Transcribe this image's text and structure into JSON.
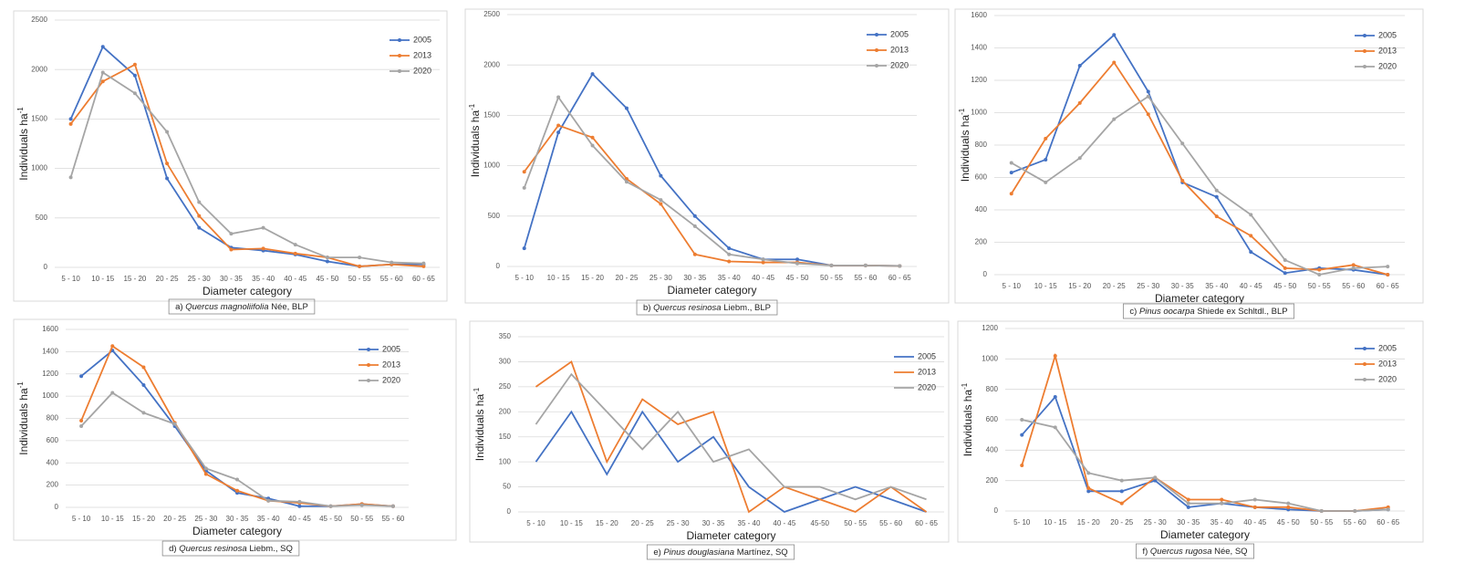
{
  "chart_data": [
    {
      "type": "line",
      "caption": {
        "label": "a)",
        "species": "Quercus magnoliifolia",
        "suffix": "Née, BLP"
      },
      "x_label": "Diameter category",
      "y_label": "Individuals ha",
      "y_label_exponent": "-1",
      "grid": true,
      "markers": true,
      "legend": "top-right",
      "categories": [
        "5 - 10",
        "10 - 15",
        "15 - 20",
        "20 - 25",
        "25 - 30",
        "30 - 35",
        "35 - 40",
        "40 - 45",
        "45 - 50",
        "50 - 55",
        "55 - 60",
        "60 - 65"
      ],
      "ylim": [
        0,
        2500
      ],
      "yticks": [
        0,
        500,
        1000,
        1500,
        2000,
        2500
      ],
      "series": [
        {
          "name": "2005",
          "color": "#4472c4",
          "values": [
            1500,
            2230,
            1940,
            900,
            400,
            200,
            170,
            130,
            60,
            10,
            30,
            30
          ]
        },
        {
          "name": "2013",
          "color": "#ed7d31",
          "values": [
            1450,
            1880,
            2050,
            1050,
            520,
            180,
            190,
            140,
            100,
            10,
            30,
            10
          ]
        },
        {
          "name": "2020",
          "color": "#a5a5a5",
          "values": [
            910,
            1970,
            1760,
            1370,
            660,
            340,
            400,
            230,
            100,
            100,
            50,
            40
          ]
        }
      ]
    },
    {
      "type": "line",
      "caption": {
        "label": "b)",
        "species": "Quercus resinosa",
        "suffix": "Liebm., BLP"
      },
      "x_label": "Diameter category",
      "y_label": "Individuals ha",
      "y_label_exponent": "-1",
      "grid": true,
      "markers": true,
      "legend": "top-right",
      "categories": [
        "5 - 10",
        "10 - 15",
        "15 - 20",
        "20 - 25",
        "25 - 30",
        "30 - 35",
        "35 - 40",
        "40 - 45",
        "45 - 50",
        "50 - 55",
        "55 - 60",
        "60 - 65"
      ],
      "ylim": [
        0,
        2500
      ],
      "yticks": [
        0,
        500,
        1000,
        1500,
        2000,
        2500
      ],
      "series": [
        {
          "name": "2005",
          "color": "#4472c4",
          "values": [
            180,
            1330,
            1910,
            1570,
            900,
            500,
            180,
            70,
            70,
            10,
            10,
            5
          ]
        },
        {
          "name": "2013",
          "color": "#ed7d31",
          "values": [
            940,
            1400,
            1280,
            870,
            620,
            120,
            50,
            40,
            40,
            10,
            10,
            5
          ]
        },
        {
          "name": "2020",
          "color": "#a5a5a5",
          "values": [
            780,
            1680,
            1200,
            840,
            660,
            400,
            120,
            70,
            30,
            10,
            10,
            5
          ]
        }
      ]
    },
    {
      "type": "line",
      "caption": {
        "label": "c)",
        "species": "Pinus oocarpa",
        "suffix": "Shiede ex Schltdl., BLP"
      },
      "x_label": "Diameter category",
      "y_label": "Individuals ha",
      "y_label_exponent": "-1",
      "grid": true,
      "markers": true,
      "legend": "top-right",
      "categories": [
        "5 - 10",
        "10 - 15",
        "15 - 20",
        "20 - 25",
        "25 - 30",
        "30 - 35",
        "35 - 40",
        "40 - 45",
        "45 - 50",
        "50 - 55",
        "55 - 60",
        "60 - 65"
      ],
      "ylim": [
        0,
        1600
      ],
      "yticks": [
        0,
        200,
        400,
        600,
        800,
        1000,
        1200,
        1400,
        1600
      ],
      "series": [
        {
          "name": "2005",
          "color": "#4472c4",
          "values": [
            630,
            710,
            1290,
            1480,
            1130,
            570,
            480,
            140,
            10,
            40,
            30,
            0
          ]
        },
        {
          "name": "2013",
          "color": "#ed7d31",
          "values": [
            500,
            840,
            1060,
            1310,
            990,
            580,
            360,
            240,
            40,
            30,
            60,
            0
          ]
        },
        {
          "name": "2020",
          "color": "#a5a5a5",
          "values": [
            690,
            570,
            720,
            960,
            1100,
            810,
            520,
            370,
            90,
            0,
            40,
            50
          ]
        }
      ]
    },
    {
      "type": "line",
      "caption": {
        "label": "d)",
        "species": "Quercus resinosa",
        "suffix": "Liebm., SQ"
      },
      "x_label": "Diameter category",
      "y_label": "Individuals ha",
      "y_label_exponent": "-1",
      "grid": true,
      "markers": true,
      "legend": "top-right",
      "categories": [
        "5 - 10",
        "10 - 15",
        "15 - 20",
        "20 - 25",
        "25 - 30",
        "30 - 35",
        "35 - 40",
        "40 - 45",
        "45 - 50",
        "50 - 55",
        "55 - 60"
      ],
      "ylim": [
        0,
        1600
      ],
      "yticks": [
        0,
        200,
        400,
        600,
        800,
        1000,
        1200,
        1400,
        1600
      ],
      "series": [
        {
          "name": "2005",
          "color": "#4472c4",
          "values": [
            1180,
            1410,
            1100,
            730,
            330,
            130,
            80,
            10,
            10,
            30,
            10
          ]
        },
        {
          "name": "2013",
          "color": "#ed7d31",
          "values": [
            780,
            1450,
            1260,
            760,
            300,
            150,
            60,
            40,
            10,
            30,
            10
          ]
        },
        {
          "name": "2020",
          "color": "#a5a5a5",
          "values": [
            730,
            1030,
            850,
            750,
            350,
            250,
            60,
            50,
            10,
            20,
            10
          ]
        }
      ]
    },
    {
      "type": "line",
      "caption": {
        "label": "e)",
        "species": "Pinus douglasiana",
        "suffix": "Martínez, SQ"
      },
      "x_label": "Diameter category",
      "y_label": "Individuals ha",
      "y_label_exponent": "-1",
      "grid": true,
      "markers": false,
      "legend": "top-right",
      "categories": [
        "5 - 10",
        "10 - 15",
        "15 - 20",
        "20 - 25",
        "25 - 30",
        "30 - 35",
        "35 - 40",
        "40 - 45",
        "45-50",
        "50 - 55",
        "55 - 60",
        "60 - 65"
      ],
      "ylim": [
        0,
        350
      ],
      "yticks": [
        0,
        50,
        100,
        150,
        200,
        250,
        300,
        350
      ],
      "series": [
        {
          "name": "2005",
          "color": "#4472c4",
          "values": [
            100,
            200,
            75,
            200,
            100,
            150,
            50,
            0,
            25,
            50,
            25,
            0
          ]
        },
        {
          "name": "2013",
          "color": "#ed7d31",
          "values": [
            250,
            300,
            100,
            225,
            175,
            200,
            0,
            50,
            25,
            0,
            50,
            0
          ]
        },
        {
          "name": "2020",
          "color": "#a5a5a5",
          "values": [
            175,
            275,
            200,
            125,
            200,
            100,
            125,
            50,
            50,
            25,
            50,
            25
          ]
        }
      ]
    },
    {
      "type": "line",
      "caption": {
        "label": "f)",
        "species": "Quercus rugosa",
        "suffix": "Née, SQ"
      },
      "x_label": "Diameter category",
      "y_label": "Individuals ha",
      "y_label_exponent": "-1",
      "grid": true,
      "markers": true,
      "legend": "top-right",
      "categories": [
        "5- 10",
        "10 - 15",
        "15 - 20",
        "20 - 25",
        "25 - 30",
        "30 - 35",
        "35 - 40",
        "40 - 45",
        "45 - 50",
        "50 - 55",
        "55 - 60",
        "60 - 65"
      ],
      "ylim": [
        0,
        1200
      ],
      "yticks": [
        0,
        200,
        400,
        600,
        800,
        1000,
        1200
      ],
      "series": [
        {
          "name": "2005",
          "color": "#4472c4",
          "values": [
            500,
            750,
            130,
            130,
            200,
            25,
            50,
            25,
            10,
            0,
            0,
            10
          ]
        },
        {
          "name": "2013",
          "color": "#ed7d31",
          "values": [
            300,
            1020,
            150,
            50,
            220,
            75,
            75,
            25,
            25,
            0,
            0,
            25
          ]
        },
        {
          "name": "2020",
          "color": "#a5a5a5",
          "values": [
            600,
            550,
            250,
            200,
            220,
            50,
            50,
            75,
            50,
            0,
            0,
            10
          ]
        }
      ]
    }
  ]
}
